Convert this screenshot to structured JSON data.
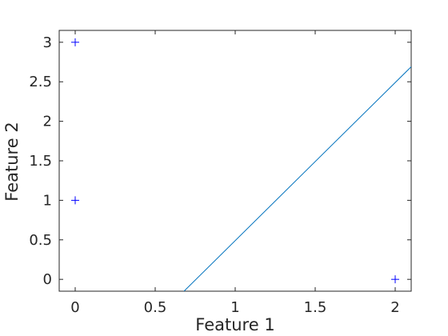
{
  "chart_data": {
    "type": "scatter",
    "xlabel": "Feature 1",
    "ylabel": "Feature 2",
    "xlim": [
      -0.1,
      2.1
    ],
    "ylim": [
      -0.15,
      3.15
    ],
    "xticks": [
      0,
      0.5,
      1,
      1.5,
      2
    ],
    "xtick_labels": [
      "0",
      "0.5",
      "1",
      "1.5",
      "2"
    ],
    "yticks": [
      0,
      0.5,
      1,
      1.5,
      2,
      2.5,
      3
    ],
    "ytick_labels": [
      "0",
      "0.5",
      "1",
      "1.5",
      "2",
      "2.5",
      "3"
    ],
    "grid": false,
    "series": [
      {
        "marker": "plus",
        "color": "#0000ff",
        "points": [
          {
            "x": 0,
            "y": 3
          },
          {
            "x": 0,
            "y": 1
          },
          {
            "x": 2,
            "y": 0
          }
        ]
      }
    ],
    "lines": [
      {
        "color": "#0072bd",
        "points": [
          {
            "x": 0.68,
            "y": -0.15
          },
          {
            "x": 2.1,
            "y": 2.69
          }
        ]
      }
    ]
  }
}
